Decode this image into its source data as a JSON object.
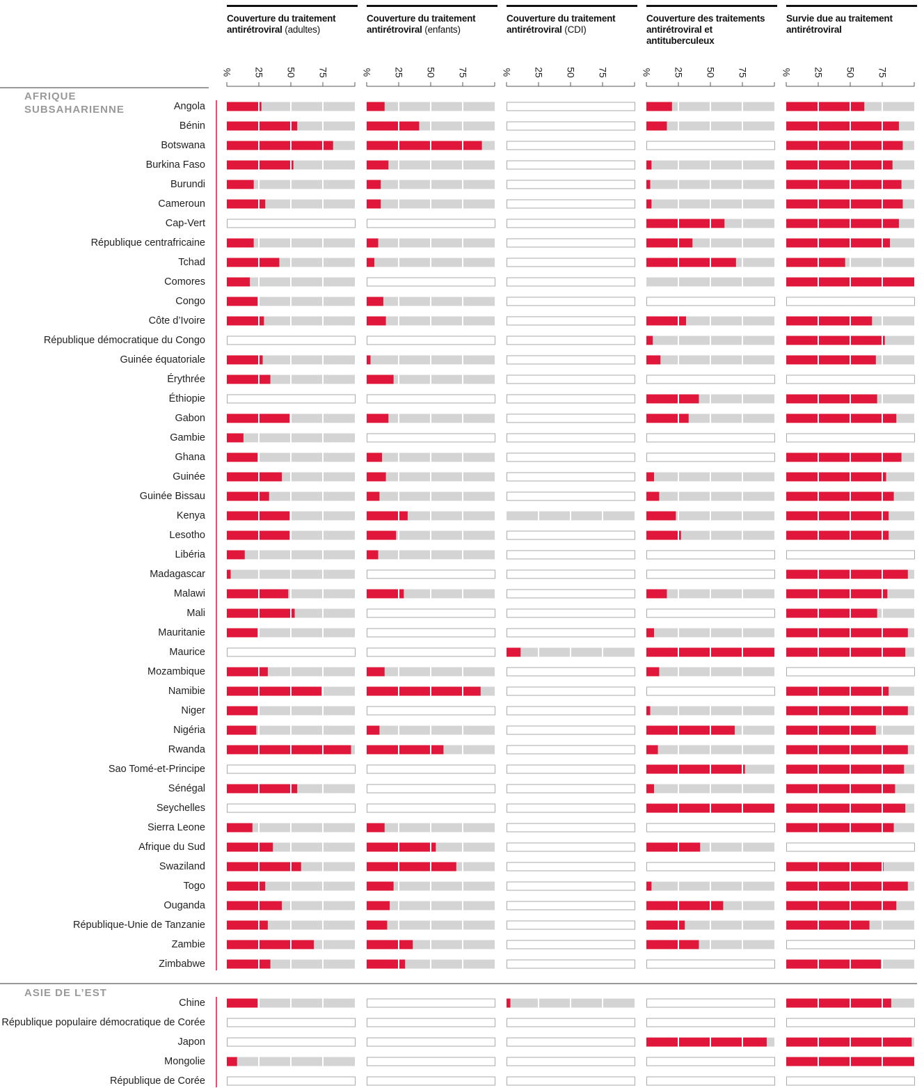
{
  "chart_data": {
    "type": "bar",
    "xlim": [
      0,
      100
    ],
    "xticks": [
      {
        "value": 0,
        "label": "%"
      },
      25,
      50,
      75
    ],
    "bar_color": "#e0173a",
    "track_color": "#d4d4d4",
    "series": [
      {
        "name": "Couverture du traitement antirétroviral",
        "qualifier": "(adultes)"
      },
      {
        "name": "Couverture du traitement antirétroviral",
        "qualifier": "(enfants)"
      },
      {
        "name": "Couverture du traitement antirétroviral",
        "qualifier": "(CDI)"
      },
      {
        "name": "Couverture des traitements antirétroviral et antituberculeux"
      },
      {
        "name": "Survie due au traitement antirétroviral"
      }
    ],
    "groups": [
      {
        "name": "AFRIQUE SUBSAHARIENNE",
        "categories": [
          "Angola",
          "Bénin",
          "Botswana",
          "Burkina Faso",
          "Burundi",
          "Cameroun",
          "Cap-Vert",
          "République centrafricaine",
          "Tchad",
          "Comores",
          "Congo",
          "Côte d’Ivoire",
          "République démocratique du Congo",
          "Guinée équatoriale",
          "Érythrée",
          "Éthiopie",
          "Gabon",
          "Gambie",
          "Ghana",
          "Guinée",
          "Guinée Bissau",
          "Kenya",
          "Lesotho",
          "Libéria",
          "Madagascar",
          "Malawi",
          "Mali",
          "Mauritanie",
          "Maurice",
          "Mozambique",
          "Namibie",
          "Niger",
          "Nigéria",
          "Rwanda",
          "Sao Tomé-et-Principe",
          "Sénégal",
          "Seychelles",
          "Sierra Leone",
          "Afrique du Sud",
          "Swaziland",
          "Togo",
          "Ouganda",
          "République-Unie de Tanzanie",
          "Zambie",
          "Zimbabwe"
        ],
        "values": [
          [
            27,
            55,
            83,
            52,
            21,
            30,
            null,
            21,
            41,
            18,
            24,
            29,
            null,
            28,
            34,
            null,
            49,
            13,
            24,
            43,
            33,
            49,
            49,
            14,
            3,
            48,
            53,
            24,
            null,
            32,
            74,
            24,
            23,
            97,
            null,
            55,
            null,
            20,
            36,
            58,
            30,
            43,
            32,
            68,
            34
          ],
          [
            14,
            41,
            90,
            17,
            11,
            11,
            null,
            9,
            6,
            null,
            13,
            15,
            null,
            3,
            21,
            null,
            17,
            null,
            12,
            15,
            10,
            32,
            23,
            9,
            null,
            29,
            null,
            null,
            null,
            14,
            89,
            null,
            10,
            60,
            null,
            null,
            null,
            14,
            54,
            70,
            21,
            18,
            16,
            36,
            30
          ],
          [
            null,
            null,
            null,
            null,
            null,
            null,
            null,
            null,
            null,
            null,
            null,
            null,
            null,
            null,
            null,
            null,
            null,
            null,
            null,
            null,
            null,
            0,
            null,
            null,
            null,
            null,
            null,
            null,
            11,
            null,
            null,
            null,
            null,
            null,
            null,
            null,
            null,
            null,
            null,
            null,
            null,
            null,
            null,
            null,
            null
          ],
          [
            20,
            16,
            null,
            4,
            3,
            4,
            61,
            36,
            70,
            0,
            null,
            31,
            5,
            11,
            null,
            41,
            33,
            null,
            null,
            6,
            10,
            23,
            27,
            null,
            null,
            16,
            null,
            6,
            100,
            10,
            null,
            3,
            69,
            9,
            77,
            6,
            100,
            null,
            42,
            null,
            4,
            60,
            30,
            41,
            null
          ],
          [
            61,
            88,
            91,
            83,
            90,
            91,
            88,
            81,
            46,
            100,
            null,
            67,
            77,
            70,
            null,
            71,
            86,
            null,
            90,
            78,
            84,
            80,
            80,
            null,
            95,
            79,
            71,
            95,
            93,
            null,
            80,
            95,
            70,
            95,
            92,
            85,
            93,
            84,
            null,
            76,
            95,
            86,
            65,
            null,
            74
          ]
        ]
      },
      {
        "name": "ASIE DE L’EST",
        "categories": [
          "Chine",
          "République populaire démocratique de Corée",
          "Japon",
          "Mongolie",
          "République de Corée"
        ],
        "values": [
          [
            24,
            null,
            null,
            8,
            null
          ],
          [
            null,
            null,
            null,
            null,
            null
          ],
          [
            3,
            null,
            null,
            null,
            null
          ],
          [
            null,
            null,
            94,
            null,
            null
          ],
          [
            82,
            null,
            98,
            100,
            null
          ]
        ]
      }
    ]
  }
}
